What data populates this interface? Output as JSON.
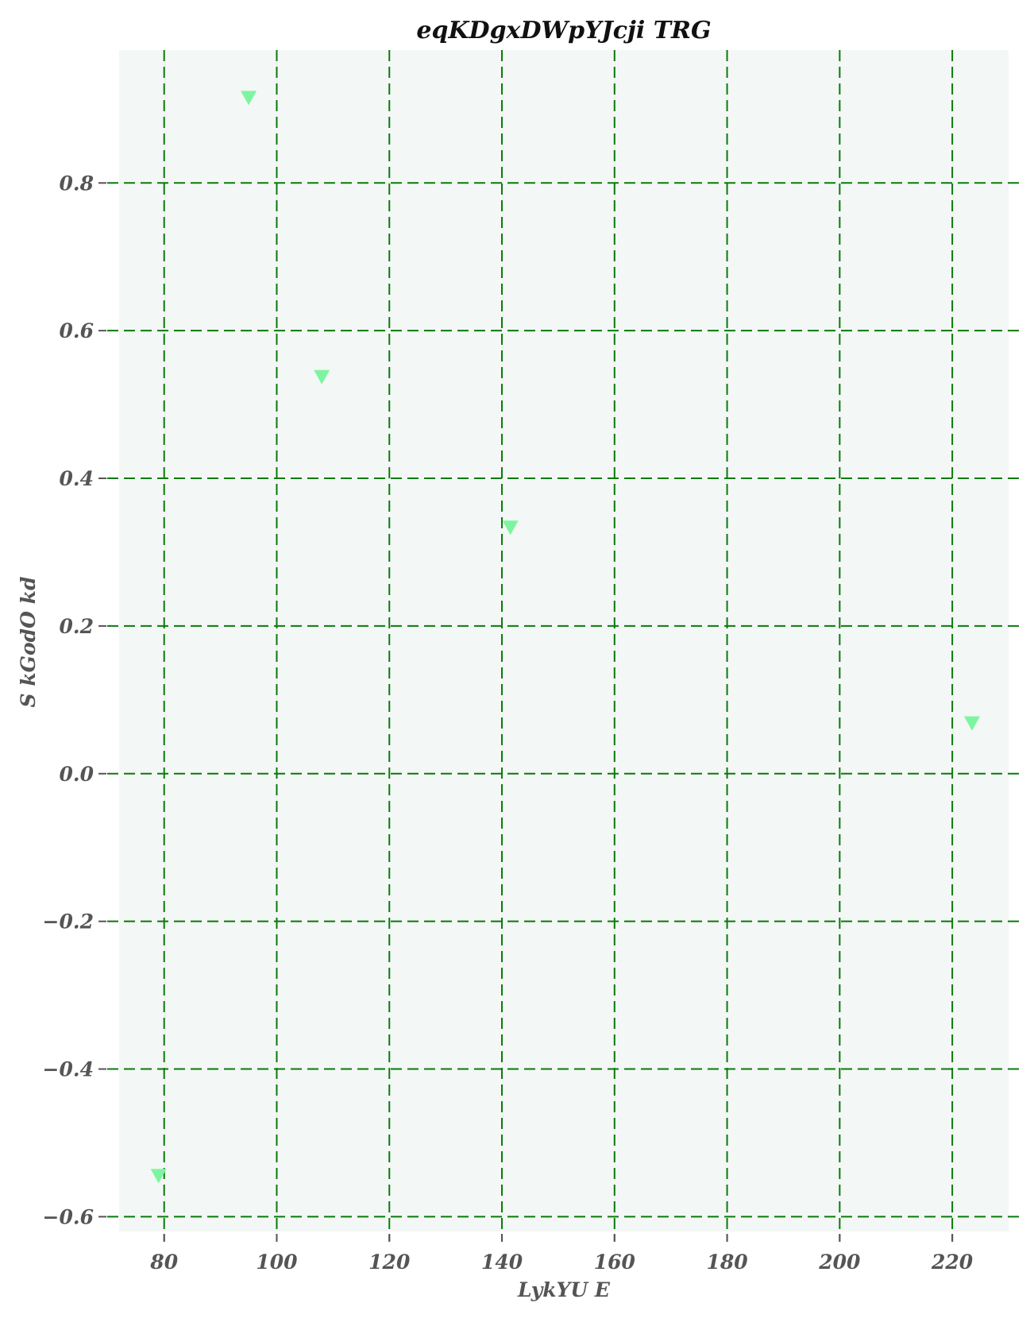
{
  "chart_data": {
    "type": "scatter",
    "title": "eqKDgxDWpYJcji TRG",
    "xlabel": "LykYU E",
    "ylabel": "S kGodO kd",
    "xlim": [
      72,
      230
    ],
    "ylim": [
      -0.62,
      0.98
    ],
    "x_ticks": [
      80,
      100,
      120,
      140,
      160,
      180,
      200,
      220
    ],
    "y_ticks": [
      -0.6,
      -0.4,
      -0.2,
      0.0,
      0.2,
      0.4,
      0.6,
      0.8
    ],
    "x_tick_labels": [
      "80",
      "100",
      "120",
      "140",
      "160",
      "180",
      "200",
      "220"
    ],
    "y_tick_labels": [
      "−0.6",
      "−0.4",
      "−0.2",
      "0.0",
      "0.2",
      "0.4",
      "0.6",
      "0.8"
    ],
    "grid": true,
    "marker": "triangle-down",
    "series": [
      {
        "points": [
          {
            "x": 79,
            "y": -0.545
          },
          {
            "x": 95,
            "y": 0.915
          },
          {
            "x": 108,
            "y": 0.537
          },
          {
            "x": 141.5,
            "y": 0.333
          },
          {
            "x": 223.5,
            "y": 0.068
          }
        ]
      }
    ],
    "colors": {
      "plot_background": "#f3f7f5",
      "grid": "#0a7a0a",
      "marker": "#7df5a0",
      "tick_text": "#555555",
      "title_text": "#111111"
    }
  }
}
